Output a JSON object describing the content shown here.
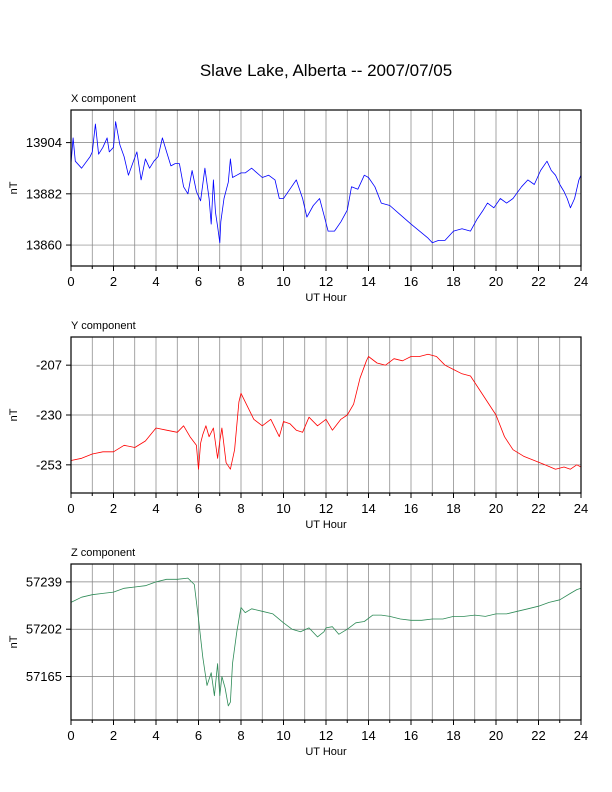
{
  "title": "Slave Lake, Alberta -- 2007/07/05",
  "colors": {
    "x": "#0000ff",
    "y": "#ff0000",
    "z": "#2e8b57",
    "grid": "#808080",
    "frame": "#000000"
  },
  "chart_data": [
    {
      "type": "line",
      "panel_label": "X component",
      "xlabel": "UT Hour",
      "ylabel": "nT",
      "xlim": [
        0,
        24
      ],
      "ylim": [
        13851,
        13918
      ],
      "xticks": [
        0,
        2,
        4,
        6,
        8,
        10,
        12,
        14,
        16,
        18,
        20,
        22,
        24
      ],
      "yticks": [
        13860,
        13882,
        13904
      ],
      "grid": true,
      "color": "x",
      "series": [
        {
          "x": [
            0,
            0.1,
            0.2,
            0.5,
            0.9,
            1.0,
            1.15,
            1.3,
            1.5,
            1.7,
            1.8,
            2.0,
            2.1,
            2.3,
            2.5,
            2.7,
            2.9,
            3.1,
            3.3,
            3.5,
            3.7,
            3.9,
            4.1,
            4.3,
            4.5,
            4.7,
            4.9,
            5.1,
            5.3,
            5.5,
            5.7,
            5.9,
            6.1,
            6.3,
            6.5,
            6.6,
            6.7,
            6.8,
            6.9,
            7.0,
            7.05,
            7.2,
            7.4,
            7.5,
            7.6,
            7.8,
            8.0,
            8.2,
            8.5,
            9.0,
            9.3,
            9.6,
            9.8,
            10.0,
            10.3,
            10.6,
            10.9,
            11.1,
            11.4,
            11.7,
            11.9,
            12.1,
            12.4,
            12.7,
            13.0,
            13.2,
            13.5,
            13.8,
            14.0,
            14.3,
            14.6,
            15.0,
            15.5,
            16.0,
            16.4,
            16.8,
            17.0,
            17.3,
            17.6,
            18.0,
            18.4,
            18.8,
            19.1,
            19.4,
            19.6,
            19.9,
            20.2,
            20.5,
            20.8,
            21.2,
            21.5,
            21.8,
            22.1,
            22.4,
            22.6,
            22.8,
            23.0,
            23.2,
            23.35,
            23.5,
            23.7,
            23.9,
            24.0
          ],
          "values": [
            13895,
            13906,
            13896,
            13893,
            13898,
            13900,
            13912,
            13899,
            13902,
            13906,
            13900,
            13902,
            13913,
            13903,
            13898,
            13890,
            13895,
            13900,
            13888,
            13897,
            13893,
            13896,
            13898,
            13906,
            13900,
            13894,
            13895,
            13895,
            13885,
            13882,
            13892,
            13883,
            13879,
            13893,
            13880,
            13869,
            13888,
            13874,
            13868,
            13861,
            13870,
            13880,
            13887,
            13897,
            13889,
            13890,
            13891,
            13891,
            13893,
            13889,
            13890,
            13888,
            13880,
            13880,
            13884,
            13888,
            13880,
            13872,
            13877,
            13880,
            13873,
            13866,
            13866,
            13870,
            13875,
            13885,
            13884,
            13890,
            13889,
            13885,
            13878,
            13877,
            13873,
            13869,
            13866,
            13863,
            13861,
            13862,
            13862,
            13866,
            13867,
            13866,
            13871,
            13875,
            13878,
            13876,
            13880,
            13878,
            13880,
            13885,
            13888,
            13886,
            13892,
            13896,
            13892,
            13890,
            13886,
            13883,
            13880,
            13876,
            13880,
            13888,
            13890
          ]
        }
      ]
    },
    {
      "type": "line",
      "panel_label": "Y component",
      "xlabel": "UT Hour",
      "ylabel": "nT",
      "xlim": [
        0,
        24
      ],
      "ylim": [
        -266,
        -194
      ],
      "xticks": [
        0,
        2,
        4,
        6,
        8,
        10,
        12,
        14,
        16,
        18,
        20,
        22,
        24
      ],
      "yticks": [
        -253,
        -230,
        -207
      ],
      "grid": true,
      "color": "y",
      "series": [
        {
          "x": [
            0,
            0.5,
            1.0,
            1.5,
            2.0,
            2.5,
            3.0,
            3.5,
            4.0,
            4.5,
            5.0,
            5.3,
            5.6,
            5.9,
            6.0,
            6.1,
            6.2,
            6.35,
            6.5,
            6.7,
            6.9,
            7.0,
            7.1,
            7.3,
            7.5,
            7.7,
            7.9,
            8.0,
            8.3,
            8.6,
            9.0,
            9.4,
            9.8,
            10.0,
            10.3,
            10.6,
            10.9,
            11.2,
            11.6,
            12.0,
            12.3,
            12.7,
            13.0,
            13.3,
            13.6,
            13.9,
            14.0,
            14.4,
            14.8,
            15.2,
            15.6,
            16.0,
            16.4,
            16.8,
            17.2,
            17.6,
            18.0,
            18.4,
            18.8,
            19.2,
            19.6,
            20.0,
            20.4,
            20.8,
            21.3,
            21.8,
            22.3,
            22.8,
            23.2,
            23.5,
            23.8,
            24.0
          ],
          "values": [
            -251,
            -250,
            -248,
            -247,
            -247,
            -244,
            -245,
            -242,
            -236,
            -237,
            -238,
            -235,
            -240,
            -244,
            -255,
            -243,
            -239,
            -235,
            -240,
            -236,
            -250,
            -242,
            -236,
            -252,
            -255,
            -246,
            -224,
            -220,
            -226,
            -232,
            -235,
            -232,
            -240,
            -233,
            -234,
            -237,
            -238,
            -231,
            -235,
            -232,
            -237,
            -232,
            -230,
            -225,
            -213,
            -205,
            -203,
            -206,
            -207,
            -204,
            -205,
            -203,
            -203,
            -202,
            -203,
            -207,
            -209,
            -211,
            -212,
            -218,
            -224,
            -230,
            -240,
            -246,
            -249,
            -251,
            -253,
            -255,
            -254,
            -255,
            -253,
            -254
          ]
        }
      ]
    },
    {
      "type": "line",
      "panel_label": "Z component",
      "xlabel": "UT Hour",
      "ylabel": "nT",
      "xlim": [
        0,
        24
      ],
      "ylim": [
        57131,
        57253
      ],
      "xticks": [
        0,
        2,
        4,
        6,
        8,
        10,
        12,
        14,
        16,
        18,
        20,
        22,
        24
      ],
      "yticks": [
        57165,
        57202,
        57239
      ],
      "grid": true,
      "color": "z",
      "series": [
        {
          "x": [
            0,
            0.5,
            1.0,
            1.5,
            2.0,
            2.5,
            3.0,
            3.5,
            4.0,
            4.5,
            5.0,
            5.5,
            5.8,
            6.0,
            6.2,
            6.4,
            6.6,
            6.75,
            6.9,
            7.0,
            7.1,
            7.25,
            7.4,
            7.5,
            7.6,
            7.8,
            8.0,
            8.2,
            8.5,
            9.0,
            9.5,
            10.0,
            10.4,
            10.8,
            11.2,
            11.6,
            11.9,
            12.0,
            12.3,
            12.6,
            13.0,
            13.4,
            13.8,
            14.2,
            14.6,
            15.0,
            15.5,
            16.0,
            16.5,
            17.0,
            17.5,
            18.0,
            18.5,
            19.0,
            19.5,
            20.0,
            20.5,
            21.0,
            21.5,
            22.0,
            22.5,
            23.0,
            23.5,
            23.8,
            24.0
          ],
          "values": [
            57223,
            57227,
            57229,
            57230,
            57231,
            57234,
            57235,
            57236,
            57239,
            57241,
            57241,
            57242,
            57237,
            57210,
            57180,
            57158,
            57168,
            57150,
            57175,
            57150,
            57165,
            57156,
            57142,
            57145,
            57175,
            57200,
            57219,
            57215,
            57218,
            57216,
            57214,
            57207,
            57202,
            57200,
            57203,
            57196,
            57200,
            57203,
            57204,
            57198,
            57202,
            57207,
            57208,
            57213,
            57213,
            57212,
            57210,
            57209,
            57209,
            57210,
            57210,
            57212,
            57212,
            57213,
            57212,
            57214,
            57214,
            57216,
            57218,
            57220,
            57223,
            57225,
            57230,
            57233,
            57234
          ]
        }
      ]
    }
  ]
}
